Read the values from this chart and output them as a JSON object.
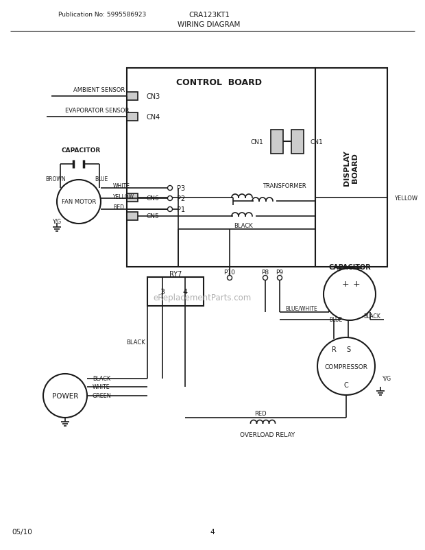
{
  "title_left": "Publication No: 5995586923",
  "title_center": "CRA123KT1",
  "subtitle": "WIRING DIAGRAM",
  "footer_left": "05/10",
  "footer_center": "4",
  "watermark": "eReplacementParts.com",
  "bg_color": "#ffffff",
  "line_color": "#1a1a1a",
  "text_color": "#1a1a1a",
  "fig_width": 6.2,
  "fig_height": 8.03,
  "dpi": 100
}
